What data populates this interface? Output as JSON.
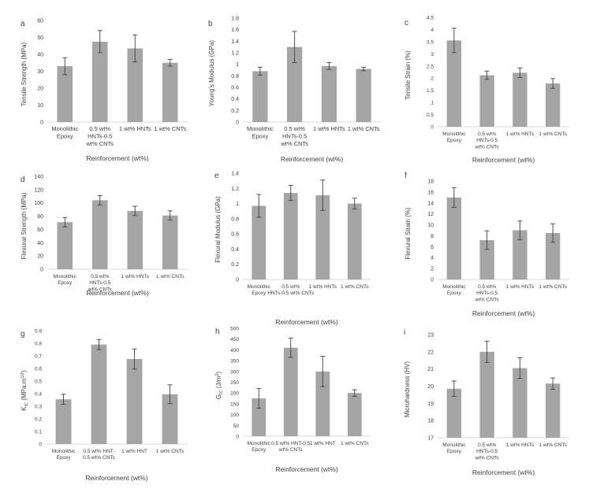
{
  "colors": {
    "bar": "#a5a5a5",
    "axis": "#d9d9d9",
    "text": "#404040",
    "error": "#404040"
  },
  "chart_data": [
    {
      "panel_label": "a",
      "type": "bar",
      "ylabel": "Tensile Strength (MPa)",
      "xlabel": "Reinforcement (wt%)",
      "ylim": [
        0,
        60
      ],
      "yticks": [
        "0",
        "10",
        "20",
        "30",
        "40",
        "50",
        "60"
      ],
      "categories": [
        [
          "Monolithic",
          "Epoxy"
        ],
        [
          "0.5 wt%",
          "HNTs-0.5",
          "wt% CNTs"
        ],
        [
          "1 wt% HNTs"
        ],
        [
          "1 wt% CNTs"
        ]
      ],
      "values": [
        33,
        47.5,
        43.5,
        35
      ],
      "errors": [
        5,
        6.5,
        8,
        2
      ],
      "grid": false,
      "legend": "none"
    },
    {
      "panel_label": "b",
      "type": "bar",
      "ylabel": "Young's Modulus (GPa)",
      "xlabel": "Reinforcement (wt%)",
      "ylim": [
        0,
        1.8
      ],
      "yticks": [
        "0",
        "0.2",
        "0.4",
        "0.6",
        "0.8",
        "1",
        "1.2",
        "1.4",
        "1.6",
        "1.8"
      ],
      "categories": [
        [
          "Monolithic",
          "Epoxy"
        ],
        [
          "0.5 wt%",
          "HNTs-0.5",
          "wt% CNTs"
        ],
        [
          "1 wt% HNTs"
        ],
        [
          "1 wt% CNTs"
        ]
      ],
      "values": [
        0.88,
        1.3,
        0.97,
        0.92
      ],
      "errors": [
        0.07,
        0.27,
        0.06,
        0.03
      ],
      "grid": false,
      "legend": "none"
    },
    {
      "panel_label": "c",
      "type": "bar",
      "ylabel": "Tensile Strain (%)",
      "xlabel": "Reinforcement (wt%)",
      "ylim": [
        0,
        4.5
      ],
      "yticks": [
        "0",
        "0.5",
        "1",
        "1.5",
        "2",
        "2.5",
        "3",
        "3.5",
        "4",
        "4.5"
      ],
      "categories": [
        [
          "Monolithic",
          "Epoxy"
        ],
        [
          "0.5 wt%",
          "HNTs-0.5",
          "wt% CNTs"
        ],
        [
          "1 wt% HNTs"
        ],
        [
          "1 wt% CNTs"
        ]
      ],
      "values": [
        3.55,
        2.12,
        2.22,
        1.78
      ],
      "errors": [
        0.5,
        0.17,
        0.2,
        0.2
      ],
      "grid": false,
      "legend": "none"
    },
    {
      "panel_label": "d",
      "type": "bar",
      "ylabel": "Flexural Strength (MPa)",
      "xlabel": "Reinforcement (wt%)",
      "ylim": [
        0,
        140
      ],
      "yticks": [
        "0",
        "20",
        "40",
        "60",
        "80",
        "100",
        "120",
        "140"
      ],
      "categories": [
        [
          "Monolithic",
          "Epoxy"
        ],
        [
          "0.5 wt%",
          "HNTs-0.5",
          "wt% CNTs"
        ],
        [
          "1 wt% HNTs"
        ],
        [
          "1 wt% CNTs"
        ]
      ],
      "values": [
        71,
        104,
        88,
        81
      ],
      "errors": [
        7,
        7,
        7,
        7
      ],
      "grid": false,
      "legend": "none"
    },
    {
      "panel_label": "e",
      "type": "bar",
      "ylabel": "Flexural Modulus (GPa)",
      "xlabel": "Reinforcement (wt%)",
      "ylim": [
        0,
        1.4
      ],
      "yticks": [
        "0",
        "0.2",
        "0.4",
        "0.6",
        "0.8",
        "1",
        "1.2",
        "1.4"
      ],
      "categories": [
        [
          "Monolithic",
          "Epoxy"
        ],
        [
          "0.5 wt%",
          "HNTs-0.5 wt% CNTs"
        ],
        [
          "1 wt% HNTs"
        ],
        [
          "1 wt% CNTs"
        ]
      ],
      "values": [
        0.97,
        1.14,
        1.11,
        1.0
      ],
      "errors": [
        0.15,
        0.1,
        0.2,
        0.07
      ],
      "grid": false,
      "legend": "none"
    },
    {
      "panel_label": "f",
      "type": "bar",
      "ylabel": "Flexural Strain (%)",
      "xlabel": "Reinforcement (wt%)",
      "ylim": [
        0,
        18
      ],
      "yticks": [
        "0",
        "2",
        "4",
        "6",
        "8",
        "10",
        "12",
        "14",
        "16",
        "18"
      ],
      "categories": [
        [
          "Monolithic",
          "Epoxy"
        ],
        [
          "0.5 wt%",
          "HNTs-0.5",
          "wt% CNTs"
        ],
        [
          "1 wt% HNTs"
        ],
        [
          "1 wt% CNTs"
        ]
      ],
      "values": [
        15,
        7.2,
        9,
        8.5
      ],
      "errors": [
        1.8,
        1.7,
        1.7,
        1.7
      ],
      "grid": false,
      "legend": "none"
    },
    {
      "panel_label": "g",
      "type": "bar",
      "ylabel": "K_IC (MPa.m^1/2)",
      "xlabel": "Reinforcement (wt%)",
      "ylim": [
        0,
        0.9
      ],
      "yticks": [
        "0",
        "0.1",
        "0.2",
        "0.3",
        "0.4",
        "0.5",
        "0.6",
        "0.7",
        "0.8",
        "0.9"
      ],
      "categories": [
        [
          "Monolithic",
          "Epoxy"
        ],
        [
          "0.5 wt% HNT-",
          "0.5 wt% CNTs"
        ],
        [
          "1 wt% HNT"
        ],
        [
          "1 wt% CNTs"
        ]
      ],
      "values": [
        0.355,
        0.79,
        0.675,
        0.395
      ],
      "errors": [
        0.04,
        0.04,
        0.08,
        0.075
      ],
      "grid": false,
      "legend": "none"
    },
    {
      "panel_label": "h",
      "type": "bar",
      "ylabel": "G_IC (J/m^2)",
      "xlabel": "Reinforcement (wt%)",
      "ylim": [
        0,
        500
      ],
      "yticks": [
        "0",
        "50",
        "100",
        "150",
        "200",
        "250",
        "300",
        "350",
        "400",
        "450",
        "500"
      ],
      "categories": [
        [
          "Monolithic",
          "Epoxy"
        ],
        [
          "0.5 wt% HNT-0.5",
          "wt% CNTs"
        ],
        [
          "1 wt% HNT"
        ],
        [
          "1 wt% CNTs"
        ]
      ],
      "values": [
        175,
        410,
        300,
        200
      ],
      "errors": [
        45,
        45,
        70,
        15
      ],
      "grid": false,
      "legend": "none"
    },
    {
      "panel_label": "i",
      "type": "bar",
      "ylabel": "Microhardness (HV)",
      "xlabel": "Reinforcement (wt%)",
      "ylim": [
        17,
        23
      ],
      "yticks": [
        "17",
        "18",
        "19",
        "20",
        "21",
        "22",
        "23"
      ],
      "categories": [
        [
          "Monolithic",
          "Epoxy"
        ],
        [
          "0.5 wt%",
          "HNTs-0.5",
          "wt% CNTs"
        ],
        [
          "1 wt% HNTs"
        ],
        [
          "1 wt% CNTs"
        ]
      ],
      "values": [
        19.85,
        22.0,
        21.05,
        20.15
      ],
      "errors": [
        0.45,
        0.62,
        0.6,
        0.33
      ],
      "grid": false,
      "legend": "none"
    }
  ]
}
